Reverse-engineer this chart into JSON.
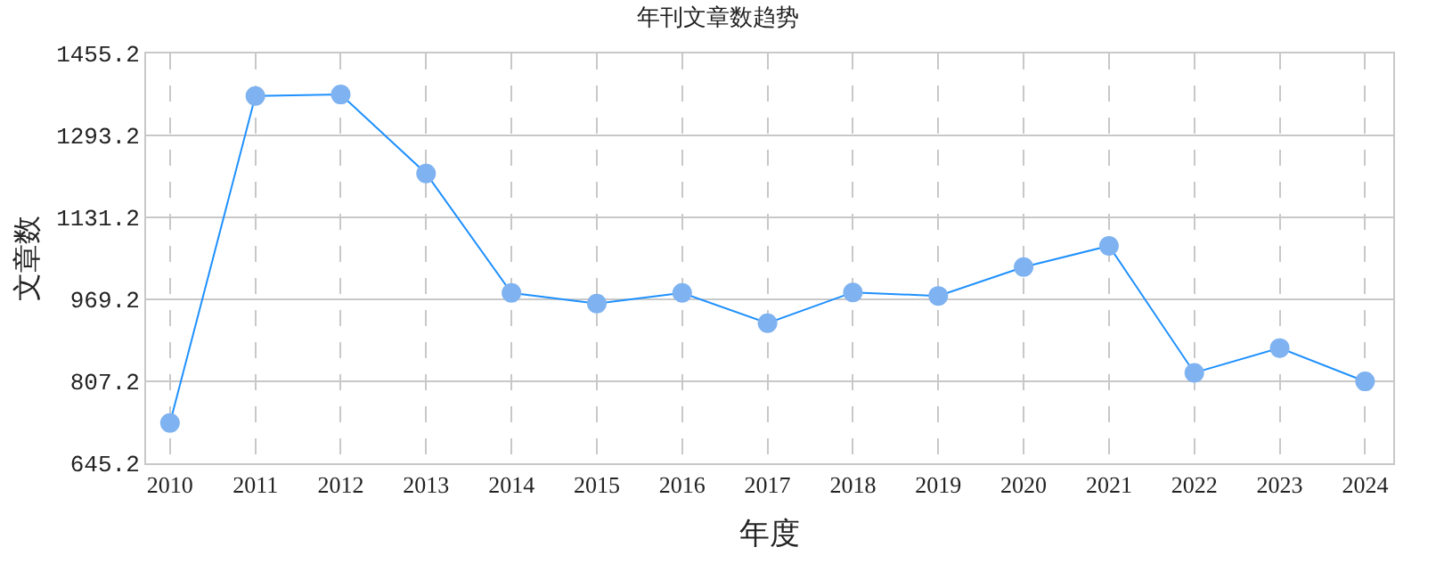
{
  "chart_data": {
    "type": "line",
    "title": "年刊文章数趋势",
    "xlabel": "年度",
    "ylabel": "文章数",
    "categories": [
      "2010",
      "2011",
      "2012",
      "2013",
      "2014",
      "2015",
      "2016",
      "2017",
      "2018",
      "2019",
      "2020",
      "2021",
      "2022",
      "2023",
      "2024"
    ],
    "series": [
      {
        "color": "#1e90ff",
        "values": [
          725,
          1371,
          1374,
          1218,
          982,
          961,
          982,
          922,
          983,
          976,
          1033,
          1075,
          824,
          873,
          807
        ]
      }
    ],
    "ylim": [
      645.2,
      1455.2
    ],
    "yticks": [
      645.2,
      807.2,
      969.2,
      1131.2,
      1293.2,
      1455.2
    ],
    "grid": true,
    "legend": false,
    "marker": "circle",
    "line_style": "solid"
  }
}
